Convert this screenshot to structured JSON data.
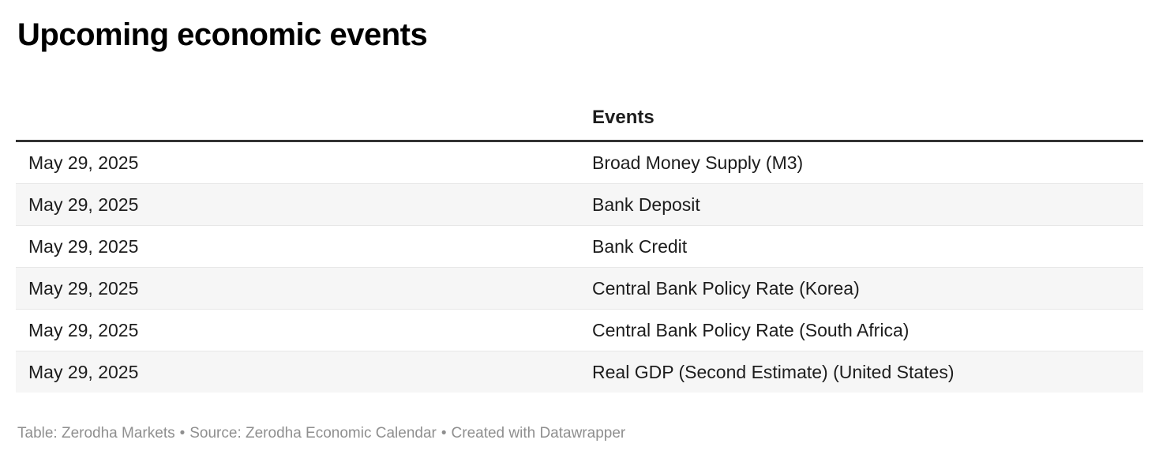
{
  "title": "Upcoming economic events",
  "table": {
    "columns": [
      "",
      "Events"
    ],
    "rows": [
      {
        "date": "May 29, 2025",
        "event": "Broad Money Supply (M3)"
      },
      {
        "date": "May 29, 2025",
        "event": "Bank Deposit"
      },
      {
        "date": "May 29, 2025",
        "event": "Bank Credit"
      },
      {
        "date": "May 29, 2025",
        "event": "Central Bank Policy Rate (Korea)"
      },
      {
        "date": "May 29, 2025",
        "event": "Central Bank Policy Rate (South Africa)"
      },
      {
        "date": "May 29, 2025",
        "event": "Real GDP (Second Estimate) (United States)"
      }
    ]
  },
  "footer": {
    "table_credit": "Table: Zerodha Markets",
    "separator": "•",
    "source_credit": "Source: Zerodha Economic Calendar",
    "created_credit": "Created with Datawrapper"
  },
  "colors": {
    "header_rule": "#333333",
    "row_stripe": "#f6f6f6",
    "row_border": "#e7e7e7",
    "text": "#1d1d1d",
    "footer_text": "#8f8f8f"
  },
  "chart_data": {
    "type": "table",
    "title": "Upcoming economic events",
    "columns": [
      "",
      "Events"
    ],
    "rows": [
      [
        "May 29, 2025",
        "Broad Money Supply (M3)"
      ],
      [
        "May 29, 2025",
        "Bank Deposit"
      ],
      [
        "May 29, 2025",
        "Bank Credit"
      ],
      [
        "May 29, 2025",
        "Central Bank Policy Rate (Korea)"
      ],
      [
        "May 29, 2025",
        "Central Bank Policy Rate (South Africa)"
      ],
      [
        "May 29, 2025",
        "Real GDP (Second Estimate) (United States)"
      ]
    ],
    "layout": {
      "zebra_stripes": true,
      "header_rule": true,
      "first_column_header_blank": true
    }
  }
}
